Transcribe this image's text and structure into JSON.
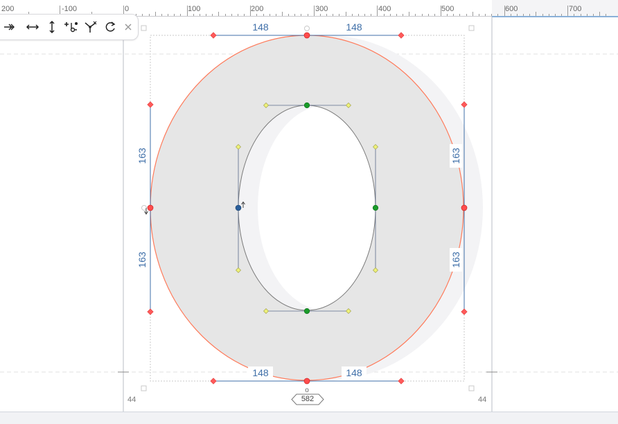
{
  "ruler": {
    "labels": [
      "200",
      "-100",
      "0",
      "100",
      "200",
      "300",
      "400",
      "500",
      "600",
      "700"
    ]
  },
  "toolbar": {
    "buttons": [
      {
        "name": "more-tools-icon",
        "glyph": "↠"
      },
      {
        "name": "flip-horizontal-icon",
        "glyph": "↔"
      },
      {
        "name": "flip-vertical-icon",
        "glyph": "↕"
      },
      {
        "name": "add-point-icon",
        "glyph": "+"
      },
      {
        "name": "split-path-icon",
        "glyph": "⑂"
      },
      {
        "name": "rotate-icon",
        "glyph": "⟳"
      },
      {
        "name": "close-icon",
        "glyph": "×"
      }
    ]
  },
  "dimensions": {
    "top_left": "148",
    "top_right": "148",
    "bottom_left": "148",
    "bottom_right": "148",
    "left_upper": "163",
    "left_lower": "163",
    "right_upper": "163",
    "right_lower": "163"
  },
  "metrics": {
    "left_sidebearing": "44",
    "right_sidebearing": "44",
    "advance_width": "582",
    "origin_marker": "o"
  },
  "colors": {
    "glyph_fill": "#e6e6e6",
    "outer_contour": "#ff6a4a",
    "node_green": "#1a9b2a",
    "node_blue": "#2b5f9a",
    "handle_yellow": "#e8ee7a",
    "dimension_blue": "#3f6fa8"
  }
}
